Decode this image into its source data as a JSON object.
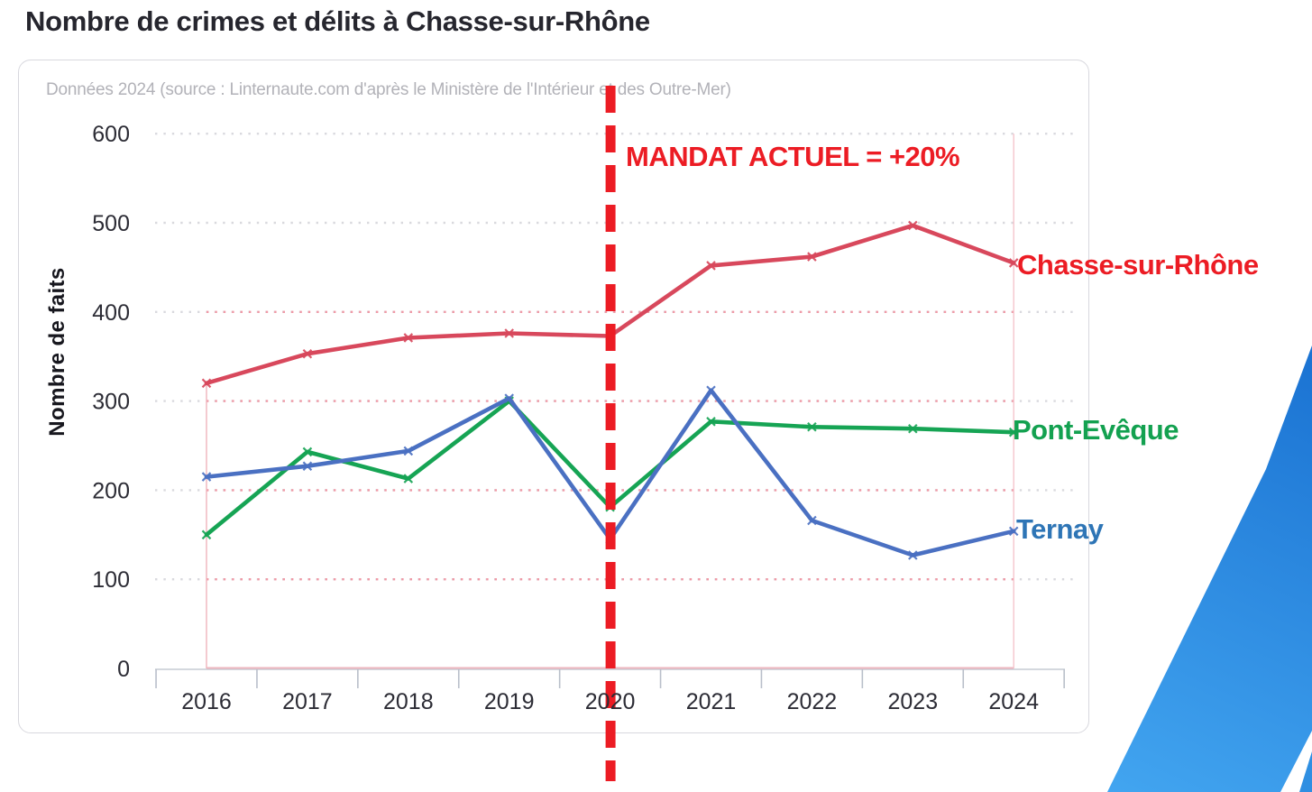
{
  "page": {
    "title": "Nombre de crimes et délits à Chasse-sur-Rhône"
  },
  "chart_data": {
    "type": "line",
    "title": "Nombre de crimes et délits à Chasse-sur-Rhône",
    "source_note": "Données 2024 (source : Linternaute.com d'après le Ministère de l'Intérieur et des Outre-Mer)",
    "ylabel": "Nombre de faits",
    "x": [
      "2016",
      "2017",
      "2018",
      "2019",
      "2020",
      "2021",
      "2022",
      "2023",
      "2024"
    ],
    "yticks": [
      0,
      100,
      200,
      300,
      400,
      500,
      600
    ],
    "ylim": [
      0,
      600
    ],
    "grid": "horizontal-dotted",
    "legend_position": "right-inline-labels",
    "series": [
      {
        "name": "Chasse-sur-Rhône",
        "color": "#d8485c",
        "label_color": "#ec1c24",
        "values": [
          320,
          353,
          371,
          376,
          373,
          452,
          462,
          497,
          455
        ]
      },
      {
        "name": "Pont-Evêque",
        "color": "#16a454",
        "label_color": "#13a150",
        "values": [
          150,
          243,
          213,
          300,
          181,
          277,
          271,
          269,
          265
        ]
      },
      {
        "name": "Ternay",
        "color": "#4a70c2",
        "label_color": "#2e75b6",
        "values": [
          215,
          227,
          244,
          303,
          145,
          312,
          166,
          127,
          154
        ]
      }
    ],
    "annotation": {
      "text": "MANDAT ACTUEL = +20%",
      "at_x": "2020",
      "color": "#ec1c24",
      "style": "dashed-vertical-line"
    }
  }
}
